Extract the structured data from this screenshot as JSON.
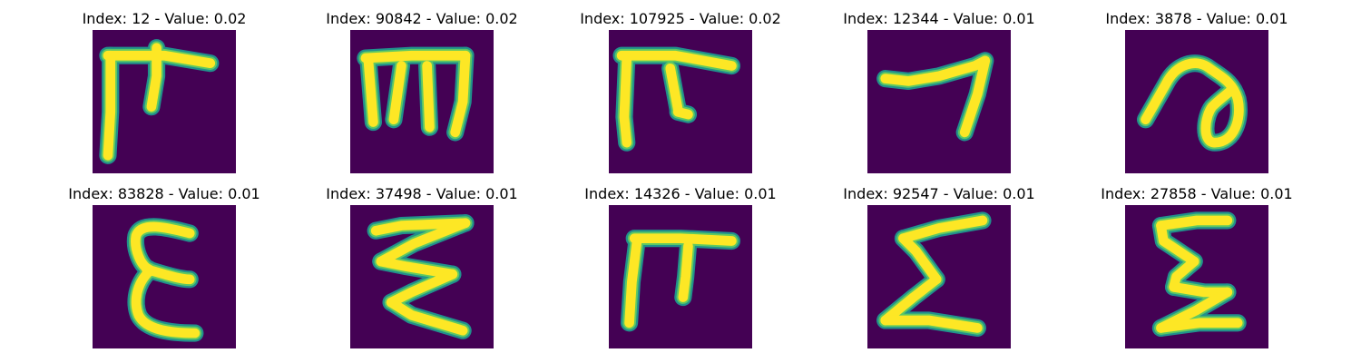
{
  "colors": {
    "background": "#440154",
    "stroke_mid": "#21918c",
    "stroke_light": "#5ec962",
    "stroke_core": "#fde725"
  },
  "panels": [
    {
      "title": "Index: 12 - Value: 0.02",
      "glyph": "pi-tick"
    },
    {
      "title": "Index: 90842 - Value: 0.02",
      "glyph": "m-like"
    },
    {
      "title": "Index: 107925 - Value: 0.02",
      "glyph": "pi-bold"
    },
    {
      "title": "Index: 12344 - Value: 0.01",
      "glyph": "seven"
    },
    {
      "title": "Index: 3878 - Value: 0.01",
      "glyph": "loop"
    },
    {
      "title": "Index: 83828 - Value: 0.01",
      "glyph": "epsilon"
    },
    {
      "title": "Index: 37498 - Value: 0.01",
      "glyph": "zigzag"
    },
    {
      "title": "Index: 14326 - Value: 0.01",
      "glyph": "pi"
    },
    {
      "title": "Index: 92547 - Value: 0.01",
      "glyph": "sigma-wide"
    },
    {
      "title": "Index: 27858 - Value: 0.01",
      "glyph": "sigma"
    }
  ]
}
